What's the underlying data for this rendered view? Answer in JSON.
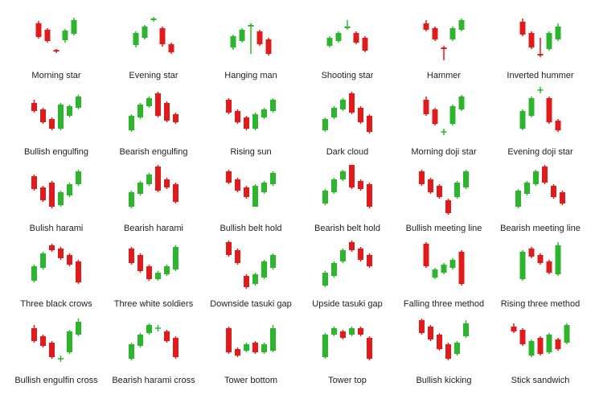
{
  "palette": {
    "bull": "#2db52d",
    "bear": "#e01b1b"
  },
  "chart_data": [
    {
      "type": "candlestick",
      "title": "Morning star",
      "candles": [
        {
          "o": 24,
          "c": 7,
          "h": 27,
          "l": 5
        },
        {
          "o": 16,
          "c": 2,
          "h": 18,
          "l": 0
        },
        {
          "o": -9,
          "c": -11,
          "h": -8,
          "l": -13
        },
        {
          "o": 3,
          "c": 15,
          "h": 17,
          "l": 0
        },
        {
          "o": 11,
          "c": 28,
          "h": 31,
          "l": 9
        }
      ]
    },
    {
      "type": "candlestick",
      "title": "Evening star",
      "candles": [
        {
          "o": -3,
          "c": 12,
          "h": 14,
          "l": -6
        },
        {
          "o": 6,
          "c": 20,
          "h": 22,
          "l": 4
        },
        {
          "o": 28,
          "c": 30,
          "h": 32,
          "l": 26
        },
        {
          "o": 18,
          "c": -2,
          "h": 20,
          "l": -5
        },
        {
          "o": -2,
          "c": -12,
          "h": 0,
          "l": -14
        }
      ]
    },
    {
      "type": "candlestick",
      "title": "Hanging man",
      "candles": [
        {
          "o": -6,
          "c": 8,
          "h": 10,
          "l": -9
        },
        {
          "o": 2,
          "c": 16,
          "h": 18,
          "l": 0
        },
        {
          "o": 20,
          "c": 22,
          "h": 24,
          "l": -14
        },
        {
          "o": 14,
          "c": -2,
          "h": 16,
          "l": -4
        },
        {
          "o": 4,
          "c": -14,
          "h": 6,
          "l": -16
        }
      ]
    },
    {
      "type": "candlestick",
      "title": "Shooting star",
      "candles": [
        {
          "o": -4,
          "c": 6,
          "h": 8,
          "l": -6
        },
        {
          "o": 2,
          "c": 12,
          "h": 14,
          "l": 0
        },
        {
          "o": 18,
          "c": 20,
          "h": 28,
          "l": 16
        },
        {
          "o": 12,
          "c": 0,
          "h": 14,
          "l": -2
        },
        {
          "o": 6,
          "c": -10,
          "h": 8,
          "l": -12
        }
      ]
    },
    {
      "type": "candlestick",
      "title": "Hammer",
      "candles": [
        {
          "o": 24,
          "c": 16,
          "h": 28,
          "l": 14
        },
        {
          "o": 18,
          "c": 4,
          "h": 20,
          "l": 2
        },
        {
          "o": -6,
          "c": -8,
          "h": -4,
          "l": -22
        },
        {
          "o": 4,
          "c": 18,
          "h": 20,
          "l": 2
        },
        {
          "o": 16,
          "c": 28,
          "h": 30,
          "l": 14
        }
      ]
    },
    {
      "type": "candlestick",
      "title": "Inverted hummer",
      "candles": [
        {
          "o": 26,
          "c": 10,
          "h": 30,
          "l": 8
        },
        {
          "o": 12,
          "c": -6,
          "h": 14,
          "l": -8
        },
        {
          "o": -14,
          "c": -16,
          "h": 6,
          "l": -18
        },
        {
          "o": -8,
          "c": 12,
          "h": 14,
          "l": -10
        },
        {
          "o": 4,
          "c": 20,
          "h": 24,
          "l": 2
        }
      ]
    },
    {
      "type": "candlestick",
      "title": "Bullish engulfing",
      "candles": [
        {
          "o": 20,
          "c": 10,
          "h": 24,
          "l": 8
        },
        {
          "o": 12,
          "c": -4,
          "h": 14,
          "l": -6
        },
        {
          "o": 0,
          "c": -12,
          "h": 2,
          "l": -14
        },
        {
          "o": -12,
          "c": 18,
          "h": 20,
          "l": -14
        },
        {
          "o": 4,
          "c": 16,
          "h": 18,
          "l": 2
        },
        {
          "o": 14,
          "c": 28,
          "h": 30,
          "l": 12
        }
      ]
    },
    {
      "type": "candlestick",
      "title": "Bearish engulfing",
      "candles": [
        {
          "o": -14,
          "c": 4,
          "h": 6,
          "l": -16
        },
        {
          "o": 2,
          "c": 18,
          "h": 20,
          "l": 0
        },
        {
          "o": 16,
          "c": 26,
          "h": 28,
          "l": 14
        },
        {
          "o": 32,
          "c": 4,
          "h": 34,
          "l": 2
        },
        {
          "o": 20,
          "c": -2,
          "h": 22,
          "l": -4
        },
        {
          "o": 6,
          "c": -4,
          "h": 8,
          "l": -6
        }
      ]
    },
    {
      "type": "candlestick",
      "title": "Rising sun",
      "candles": [
        {
          "o": 24,
          "c": 8,
          "h": 26,
          "l": 6
        },
        {
          "o": 10,
          "c": -4,
          "h": 12,
          "l": -6
        },
        {
          "o": 2,
          "c": -12,
          "h": 4,
          "l": -14
        },
        {
          "o": -12,
          "c": 6,
          "h": 8,
          "l": -14
        },
        {
          "o": 2,
          "c": 12,
          "h": 14,
          "l": 0
        },
        {
          "o": 10,
          "c": 24,
          "h": 26,
          "l": 8
        }
      ]
    },
    {
      "type": "candlestick",
      "title": "Dark cloud",
      "candles": [
        {
          "o": -14,
          "c": 0,
          "h": 2,
          "l": -16
        },
        {
          "o": 2,
          "c": 14,
          "h": 16,
          "l": 0
        },
        {
          "o": 12,
          "c": 24,
          "h": 26,
          "l": 10
        },
        {
          "o": 32,
          "c": 8,
          "h": 34,
          "l": 6
        },
        {
          "o": 14,
          "c": -4,
          "h": 16,
          "l": -6
        },
        {
          "o": 4,
          "c": -16,
          "h": 6,
          "l": -18
        }
      ]
    },
    {
      "type": "candlestick",
      "title": "Morning doji star",
      "candles": [
        {
          "o": 24,
          "c": 6,
          "h": 28,
          "l": 4
        },
        {
          "o": 12,
          "c": -6,
          "h": 14,
          "l": -8
        },
        {
          "o": -16,
          "c": -16,
          "h": -12,
          "l": -20
        },
        {
          "o": -6,
          "c": 16,
          "h": 18,
          "l": -8
        },
        {
          "o": 12,
          "c": 28,
          "h": 30,
          "l": 10
        }
      ]
    },
    {
      "type": "candlestick",
      "title": "Evening doji star",
      "candles": [
        {
          "o": -12,
          "c": 10,
          "h": 12,
          "l": -14
        },
        {
          "o": 4,
          "c": 26,
          "h": 28,
          "l": 2
        },
        {
          "o": 36,
          "c": 36,
          "h": 40,
          "l": 32
        },
        {
          "o": 26,
          "c": -4,
          "h": 28,
          "l": -6
        },
        {
          "o": -2,
          "c": -14,
          "h": 0,
          "l": -16
        }
      ]
    },
    {
      "type": "candlestick",
      "title": "Bulish harami",
      "candles": [
        {
          "o": 24,
          "c": 8,
          "h": 26,
          "l": 6
        },
        {
          "o": 10,
          "c": -6,
          "h": 12,
          "l": -8
        },
        {
          "o": 16,
          "c": -14,
          "h": 18,
          "l": -16
        },
        {
          "o": -12,
          "c": 4,
          "h": 6,
          "l": -14
        },
        {
          "o": 0,
          "c": 14,
          "h": 16,
          "l": -2
        },
        {
          "o": 14,
          "c": 30,
          "h": 32,
          "l": 12
        }
      ]
    },
    {
      "type": "candlestick",
      "title": "Bearish harami",
      "candles": [
        {
          "o": -14,
          "c": 4,
          "h": 6,
          "l": -16
        },
        {
          "o": 2,
          "c": 16,
          "h": 18,
          "l": 0
        },
        {
          "o": 14,
          "c": 26,
          "h": 28,
          "l": 12
        },
        {
          "o": 36,
          "c": 6,
          "h": 38,
          "l": 4
        },
        {
          "o": 20,
          "c": 10,
          "h": 22,
          "l": 8
        },
        {
          "o": 14,
          "c": -8,
          "h": 16,
          "l": -10
        }
      ]
    },
    {
      "type": "candlestick",
      "title": "Bullish belt hold",
      "candles": [
        {
          "o": 30,
          "c": 16,
          "h": 32,
          "l": 14
        },
        {
          "o": 20,
          "c": 6,
          "h": 22,
          "l": 4
        },
        {
          "o": 10,
          "c": -2,
          "h": 12,
          "l": -4
        },
        {
          "o": -14,
          "c": 12,
          "h": 14,
          "l": -14
        },
        {
          "o": 4,
          "c": 16,
          "h": 18,
          "l": 2
        },
        {
          "o": 14,
          "c": 28,
          "h": 30,
          "l": 12
        }
      ]
    },
    {
      "type": "candlestick",
      "title": "Bearish belt hold",
      "candles": [
        {
          "o": -10,
          "c": 6,
          "h": 8,
          "l": -12
        },
        {
          "o": 4,
          "c": 20,
          "h": 22,
          "l": 2
        },
        {
          "o": 20,
          "c": 30,
          "h": 32,
          "l": 18
        },
        {
          "o": 38,
          "c": 10,
          "h": 38,
          "l": 8
        },
        {
          "o": 18,
          "c": 8,
          "h": 20,
          "l": 6
        },
        {
          "o": 14,
          "c": -14,
          "h": 16,
          "l": -16
        }
      ]
    },
    {
      "type": "candlestick",
      "title": "Bullish meeting line",
      "candles": [
        {
          "o": 30,
          "c": 14,
          "h": 32,
          "l": 12
        },
        {
          "o": 20,
          "c": 4,
          "h": 22,
          "l": 2
        },
        {
          "o": 12,
          "c": -2,
          "h": 14,
          "l": -4
        },
        {
          "o": -6,
          "c": -22,
          "h": -4,
          "l": -24
        },
        {
          "o": -2,
          "c": 16,
          "h": 18,
          "l": -4
        },
        {
          "o": 10,
          "c": 30,
          "h": 32,
          "l": 8
        }
      ]
    },
    {
      "type": "candlestick",
      "title": "Bearish meeting line",
      "candles": [
        {
          "o": -14,
          "c": 6,
          "h": 8,
          "l": -16
        },
        {
          "o": 2,
          "c": 16,
          "h": 18,
          "l": 0
        },
        {
          "o": 14,
          "c": 30,
          "h": 32,
          "l": 12
        },
        {
          "o": 36,
          "c": 16,
          "h": 38,
          "l": 14
        },
        {
          "o": 12,
          "c": -2,
          "h": 14,
          "l": -4
        },
        {
          "o": 4,
          "c": -10,
          "h": 6,
          "l": -12
        }
      ]
    },
    {
      "type": "candlestick",
      "title": "Three black crows",
      "candles": [
        {
          "o": -12,
          "c": 6,
          "h": 8,
          "l": -14
        },
        {
          "o": 4,
          "c": 22,
          "h": 24,
          "l": 2
        },
        {
          "o": 32,
          "c": 26,
          "h": 34,
          "l": 24
        },
        {
          "o": 28,
          "c": 16,
          "h": 30,
          "l": 14
        },
        {
          "o": 20,
          "c": 8,
          "h": 22,
          "l": 6
        },
        {
          "o": 12,
          "c": -14,
          "h": 14,
          "l": -16
        }
      ]
    },
    {
      "type": "candlestick",
      "title": "Three white soldiers",
      "candles": [
        {
          "o": 28,
          "c": 10,
          "h": 30,
          "l": 8
        },
        {
          "o": 20,
          "c": 0,
          "h": 22,
          "l": -2
        },
        {
          "o": 6,
          "c": -10,
          "h": 8,
          "l": -12
        },
        {
          "o": -10,
          "c": -2,
          "h": 0,
          "l": -12
        },
        {
          "o": -4,
          "c": 6,
          "h": 8,
          "l": -6
        },
        {
          "o": 2,
          "c": 30,
          "h": 32,
          "l": 0
        }
      ]
    },
    {
      "type": "candlestick",
      "title": "Downside tasuki gap",
      "candles": [
        {
          "o": 36,
          "c": 20,
          "h": 38,
          "l": 18
        },
        {
          "o": 26,
          "c": 10,
          "h": 28,
          "l": 8
        },
        {
          "o": -6,
          "c": -20,
          "h": -4,
          "l": -22
        },
        {
          "o": -16,
          "c": -4,
          "h": -2,
          "l": -18
        },
        {
          "o": -8,
          "c": 12,
          "h": 14,
          "l": -10
        },
        {
          "o": 4,
          "c": 20,
          "h": 22,
          "l": 2
        }
      ]
    },
    {
      "type": "candlestick",
      "title": "Upside tasuki gap",
      "candles": [
        {
          "o": -18,
          "c": -2,
          "h": 0,
          "l": -20
        },
        {
          "o": -6,
          "c": 10,
          "h": 12,
          "l": -8
        },
        {
          "o": 12,
          "c": 26,
          "h": 28,
          "l": 10
        },
        {
          "o": 36,
          "c": 26,
          "h": 38,
          "l": 24
        },
        {
          "o": 28,
          "c": 14,
          "h": 30,
          "l": 12
        },
        {
          "o": 20,
          "c": 6,
          "h": 22,
          "l": 4
        }
      ]
    },
    {
      "type": "candlestick",
      "title": "Falling three method",
      "candles": [
        {
          "o": 34,
          "c": 6,
          "h": 36,
          "l": 4
        },
        {
          "o": -8,
          "c": 2,
          "h": 4,
          "l": -10
        },
        {
          "o": -2,
          "c": 8,
          "h": 10,
          "l": -4
        },
        {
          "o": 4,
          "c": 14,
          "h": 16,
          "l": 2
        },
        {
          "o": 24,
          "c": -16,
          "h": 26,
          "l": -18
        }
      ]
    },
    {
      "type": "candlestick",
      "title": "Rising three method",
      "candles": [
        {
          "o": -10,
          "c": 24,
          "h": 26,
          "l": -12
        },
        {
          "o": 28,
          "c": 18,
          "h": 30,
          "l": 16
        },
        {
          "o": 20,
          "c": 10,
          "h": 22,
          "l": 8
        },
        {
          "o": 12,
          "c": -2,
          "h": 14,
          "l": -4
        },
        {
          "o": -4,
          "c": 32,
          "h": 36,
          "l": -6
        }
      ]
    },
    {
      "type": "candlestick",
      "title": "Bullish engulfin cross",
      "candles": [
        {
          "o": 24,
          "c": 8,
          "h": 28,
          "l": 6
        },
        {
          "o": 14,
          "c": 2,
          "h": 16,
          "l": 0
        },
        {
          "o": 6,
          "c": -12,
          "h": 8,
          "l": -14
        },
        {
          "o": -14,
          "c": -14,
          "h": -10,
          "l": -18
        },
        {
          "o": -6,
          "c": 20,
          "h": 22,
          "l": -8
        },
        {
          "o": 16,
          "c": 32,
          "h": 36,
          "l": 14
        }
      ]
    },
    {
      "type": "candlestick",
      "title": "Bearish harami cross",
      "candles": [
        {
          "o": -14,
          "c": 4,
          "h": 6,
          "l": -16
        },
        {
          "o": 2,
          "c": 16,
          "h": 18,
          "l": 0
        },
        {
          "o": 18,
          "c": 28,
          "h": 30,
          "l": 16
        },
        {
          "o": 24,
          "c": 24,
          "h": 28,
          "l": 20
        },
        {
          "o": 20,
          "c": 8,
          "h": 22,
          "l": 6
        },
        {
          "o": 12,
          "c": -12,
          "h": 14,
          "l": -14
        }
      ]
    },
    {
      "type": "candlestick",
      "title": "Tower bottom",
      "candles": [
        {
          "o": 24,
          "c": -6,
          "h": 26,
          "l": -8
        },
        {
          "o": -2,
          "c": -10,
          "h": 0,
          "l": -12
        },
        {
          "o": -4,
          "c": 4,
          "h": 6,
          "l": -6
        },
        {
          "o": 6,
          "c": -6,
          "h": 8,
          "l": -8
        },
        {
          "o": -6,
          "c": 4,
          "h": 6,
          "l": -8
        },
        {
          "o": -4,
          "c": 24,
          "h": 28,
          "l": -6
        }
      ]
    },
    {
      "type": "candlestick",
      "title": "Tower top",
      "candles": [
        {
          "o": -12,
          "c": 16,
          "h": 18,
          "l": -14
        },
        {
          "o": 16,
          "c": 24,
          "h": 26,
          "l": 14
        },
        {
          "o": 20,
          "c": 12,
          "h": 22,
          "l": 10
        },
        {
          "o": 16,
          "c": 24,
          "h": 26,
          "l": 14
        },
        {
          "o": 24,
          "c": 16,
          "h": 26,
          "l": 14
        },
        {
          "o": 12,
          "c": -14,
          "h": 14,
          "l": -16
        }
      ]
    },
    {
      "type": "candlestick",
      "title": "Bullish kicking",
      "candles": [
        {
          "o": 34,
          "c": 18,
          "h": 36,
          "l": 16
        },
        {
          "o": 26,
          "c": 10,
          "h": 28,
          "l": 8
        },
        {
          "o": 16,
          "c": -2,
          "h": 18,
          "l": -4
        },
        {
          "o": 4,
          "c": -14,
          "h": 6,
          "l": -16
        },
        {
          "o": -8,
          "c": 6,
          "h": 8,
          "l": -10
        },
        {
          "o": 14,
          "c": 30,
          "h": 34,
          "l": 12
        }
      ]
    },
    {
      "type": "candlestick",
      "title": "Stick sandwich",
      "candles": [
        {
          "o": 26,
          "c": 20,
          "h": 30,
          "l": 18
        },
        {
          "o": 22,
          "c": 4,
          "h": 24,
          "l": 2
        },
        {
          "o": -10,
          "c": 8,
          "h": 10,
          "l": -12
        },
        {
          "o": 12,
          "c": -8,
          "h": 14,
          "l": -10
        },
        {
          "o": -6,
          "c": 16,
          "h": 18,
          "l": -8
        },
        {
          "o": 10,
          "c": -2,
          "h": 12,
          "l": -4
        },
        {
          "o": 6,
          "c": 28,
          "h": 30,
          "l": 4
        }
      ]
    }
  ]
}
